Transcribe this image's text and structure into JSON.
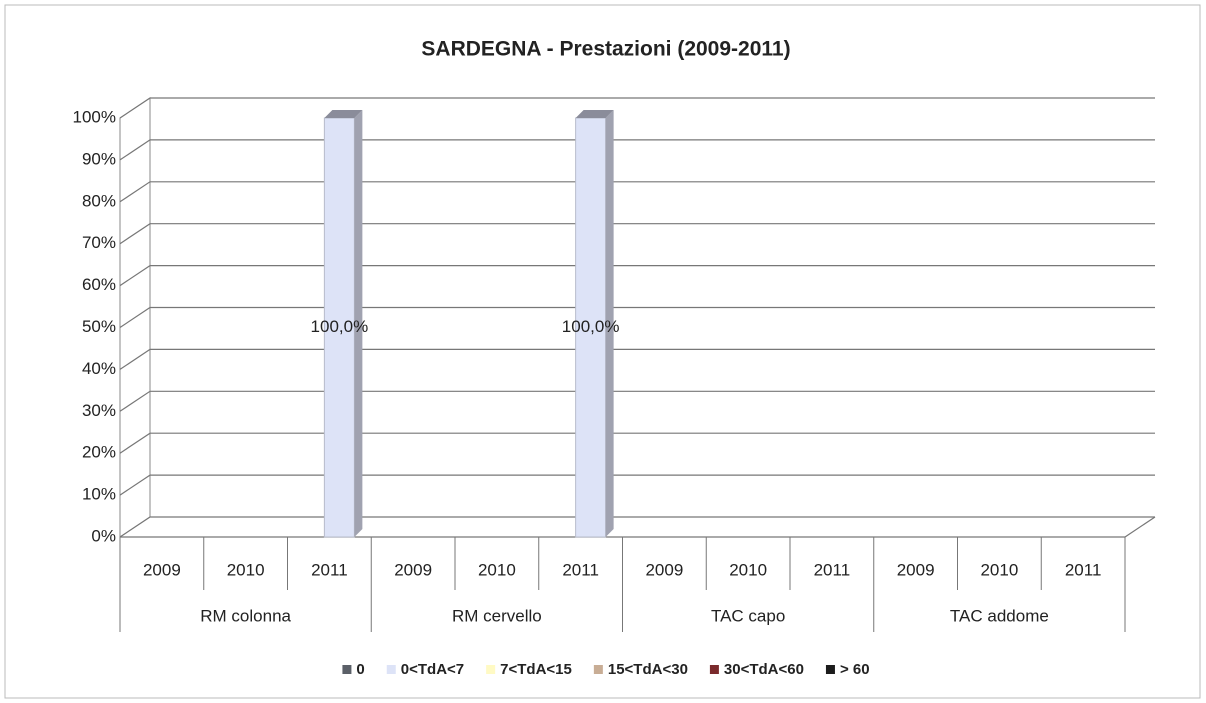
{
  "chart_data": {
    "type": "bar3d-stacked",
    "title": "SARDEGNA - Prestazioni (2009-2011)",
    "categories": [
      "2009",
      "2010",
      "2011",
      "2009",
      "2010",
      "2011",
      "2009",
      "2010",
      "2011",
      "2009",
      "2010",
      "2011"
    ],
    "category_groups": [
      "RM colonna",
      "RM cervello",
      "TAC capo",
      "TAC addome"
    ],
    "series": [
      {
        "name": "0",
        "color": "#5b6068",
        "values": [
          null,
          null,
          null,
          null,
          null,
          null,
          null,
          null,
          null,
          null,
          null,
          null
        ]
      },
      {
        "name": "0<TdA<7",
        "color": "#dde3f7",
        "values": [
          null,
          null,
          100,
          null,
          null,
          100,
          null,
          null,
          null,
          null,
          null,
          null
        ],
        "value_labels": [
          null,
          null,
          "100,0%",
          null,
          null,
          "100,0%",
          null,
          null,
          null,
          null,
          null,
          null
        ]
      },
      {
        "name": "7<TdA<15",
        "color": "#fffac4",
        "values": [
          null,
          null,
          null,
          null,
          null,
          null,
          null,
          null,
          null,
          null,
          null,
          null
        ]
      },
      {
        "name": "15<TdA<30",
        "color": "#c8ad95",
        "values": [
          null,
          null,
          null,
          null,
          null,
          null,
          null,
          null,
          null,
          null,
          null,
          null
        ]
      },
      {
        "name": "30<TdA<60",
        "color": "#7a2a2c",
        "values": [
          null,
          null,
          null,
          null,
          null,
          null,
          null,
          null,
          null,
          null,
          null,
          null
        ]
      },
      {
        "name": "> 60",
        "color": "#1c1c1c",
        "values": [
          null,
          null,
          null,
          null,
          null,
          null,
          null,
          null,
          null,
          null,
          null,
          null
        ]
      }
    ],
    "ylim": [
      0,
      100
    ],
    "yticks": [
      {
        "value": 0,
        "label": "0%"
      },
      {
        "value": 10,
        "label": "10%"
      },
      {
        "value": 20,
        "label": "20%"
      },
      {
        "value": 30,
        "label": "30%"
      },
      {
        "value": 40,
        "label": "40%"
      },
      {
        "value": 50,
        "label": "50%"
      },
      {
        "value": 60,
        "label": "60%"
      },
      {
        "value": 70,
        "label": "70%"
      },
      {
        "value": 80,
        "label": "80%"
      },
      {
        "value": 90,
        "label": "90%"
      },
      {
        "value": 100,
        "label": "100%"
      }
    ],
    "grid": true,
    "legend": "bottom"
  }
}
